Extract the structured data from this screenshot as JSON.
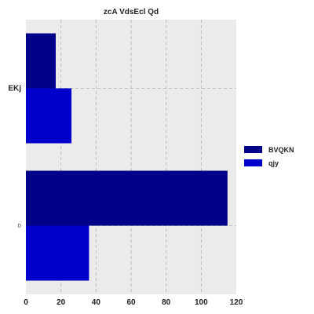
{
  "chart_data": {
    "type": "bar",
    "orientation": "horizontal",
    "title": "zcA VdsEcl Qd",
    "xlabel": "",
    "ylabel": "",
    "categories": [
      "EKj",
      "D"
    ],
    "category_label_styles": [
      "normal",
      "small"
    ],
    "series": [
      {
        "name": "BVQKN",
        "values": [
          17,
          115
        ],
        "color": "#00008b"
      },
      {
        "name": "qjy",
        "values": [
          26,
          36
        ],
        "color": "#0000cd"
      }
    ],
    "xlim": [
      0,
      120
    ],
    "xticks": [
      "0",
      "20",
      "40",
      "60",
      "80",
      "100",
      "120"
    ],
    "grid": true,
    "legend_position": "right"
  }
}
